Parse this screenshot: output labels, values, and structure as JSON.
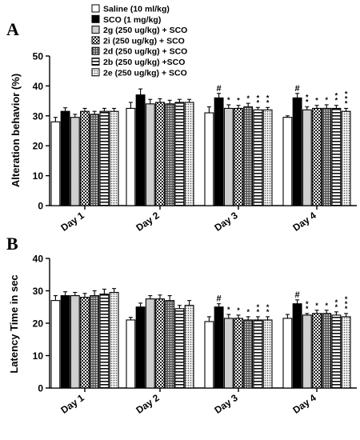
{
  "legend": {
    "entries": [
      {
        "label": "Saline (10 ml/kg)",
        "pattern": "white"
      },
      {
        "label": "SCO (1 mg/kg)",
        "pattern": "black"
      },
      {
        "label": "2g (250 ug/kg) + SCO",
        "pattern": "lightgray"
      },
      {
        "label": "2i (250 ug/kg) + SCO",
        "pattern": "check"
      },
      {
        "label": "2d (250 ug/kg) + SCO",
        "pattern": "checkdark"
      },
      {
        "label": "2b (250 ug/kg) +SCO",
        "pattern": "hstripe"
      },
      {
        "label": "2e (250 ug/kg) + SCO",
        "pattern": "dots"
      }
    ]
  },
  "chart_data": [
    {
      "panel_letter": "A",
      "type": "bar",
      "ylabel": "Alteration behavior (%)",
      "ylim": [
        0,
        50
      ],
      "yticks": [
        0,
        10,
        20,
        30,
        40,
        50
      ],
      "categories": [
        "Day 1",
        "Day 2",
        "Day 3",
        "Day 4"
      ],
      "series": [
        {
          "name": "Saline (10 ml/kg)",
          "values": [
            28,
            32.5,
            31,
            29.5
          ],
          "errors": [
            1.5,
            2,
            2,
            0.5
          ]
        },
        {
          "name": "SCO (1 mg/kg)",
          "values": [
            31.5,
            37,
            36,
            36
          ],
          "errors": [
            1.2,
            2,
            1.5,
            1.5
          ]
        },
        {
          "name": "2g (250 ug/kg) + SCO",
          "values": [
            29.5,
            34,
            32.5,
            32
          ],
          "errors": [
            1,
            1.5,
            1.2,
            1
          ]
        },
        {
          "name": "2i (250 ug/kg) + SCO",
          "values": [
            31.5,
            34.5,
            32.5,
            32.5
          ],
          "errors": [
            1,
            1.2,
            1,
            1
          ]
        },
        {
          "name": "2d (250 ug/kg) + SCO",
          "values": [
            30.5,
            34,
            33,
            32.5
          ],
          "errors": [
            1,
            1.2,
            1.2,
            1.2
          ]
        },
        {
          "name": "2b (250 ug/kg) +SCO",
          "values": [
            31.5,
            34.5,
            32,
            32.5
          ],
          "errors": [
            1,
            1,
            0.8,
            1
          ]
        },
        {
          "name": "2e (250 ug/kg) + SCO",
          "values": [
            31.5,
            34.5,
            32,
            31.5
          ],
          "errors": [
            1,
            1,
            0.8,
            1
          ]
        }
      ],
      "annotations": [
        {
          "category": 2,
          "series": 1,
          "text": "#"
        },
        {
          "category": 2,
          "series": 2,
          "text": "*"
        },
        {
          "category": 2,
          "series": 3,
          "text": "*"
        },
        {
          "category": 2,
          "series": 4,
          "text": "*"
        },
        {
          "category": 2,
          "series": 5,
          "text": "**"
        },
        {
          "category": 2,
          "series": 6,
          "text": "**"
        },
        {
          "category": 3,
          "series": 1,
          "text": "#"
        },
        {
          "category": 3,
          "series": 2,
          "text": "**"
        },
        {
          "category": 3,
          "series": 3,
          "text": "*"
        },
        {
          "category": 3,
          "series": 4,
          "text": "*"
        },
        {
          "category": 3,
          "series": 5,
          "text": "**"
        },
        {
          "category": 3,
          "series": 6,
          "text": "***"
        }
      ]
    },
    {
      "panel_letter": "B",
      "type": "bar",
      "ylabel": "Latency Time in sec",
      "ylim": [
        0,
        40
      ],
      "yticks": [
        0,
        10,
        20,
        30,
        40
      ],
      "categories": [
        "Day 1",
        "Day 2",
        "Day 3",
        "Day 4"
      ],
      "series": [
        {
          "name": "Saline (10 ml/kg)",
          "values": [
            27,
            21,
            20.5,
            21.5
          ],
          "errors": [
            1.5,
            0.8,
            1.5,
            1.2
          ]
        },
        {
          "name": "SCO (1 mg/kg)",
          "values": [
            28.5,
            25,
            25,
            26
          ],
          "errors": [
            1.2,
            1.2,
            1,
            1.2
          ]
        },
        {
          "name": "2g (250 ug/kg) + SCO",
          "values": [
            28.5,
            27.5,
            21.5,
            22.5
          ],
          "errors": [
            1,
            1,
            1.2,
            0.5
          ]
        },
        {
          "name": "2i (250 ug/kg) + SCO",
          "values": [
            28,
            27.5,
            21.5,
            23
          ],
          "errors": [
            1.2,
            1.2,
            1,
            1
          ]
        },
        {
          "name": "2d (250 ug/kg) + SCO",
          "values": [
            28.5,
            27,
            21,
            23
          ],
          "errors": [
            1.5,
            1.5,
            1,
            1
          ]
        },
        {
          "name": "2b (250 ug/kg) +SCO",
          "values": [
            29,
            24.5,
            21,
            22.5
          ],
          "errors": [
            1.5,
            1,
            1,
            1
          ]
        },
        {
          "name": "2e (250 ug/kg) + SCO",
          "values": [
            29.5,
            25.5,
            21,
            22
          ],
          "errors": [
            1.2,
            1.5,
            1,
            1
          ]
        }
      ],
      "annotations": [
        {
          "category": 2,
          "series": 1,
          "text": "#"
        },
        {
          "category": 2,
          "series": 2,
          "text": "*"
        },
        {
          "category": 2,
          "series": 3,
          "text": "*"
        },
        {
          "category": 2,
          "series": 4,
          "text": "*"
        },
        {
          "category": 2,
          "series": 5,
          "text": "**"
        },
        {
          "category": 2,
          "series": 6,
          "text": "**"
        },
        {
          "category": 3,
          "series": 1,
          "text": "#"
        },
        {
          "category": 3,
          "series": 2,
          "text": "**"
        },
        {
          "category": 3,
          "series": 3,
          "text": "*"
        },
        {
          "category": 3,
          "series": 4,
          "text": "*"
        },
        {
          "category": 3,
          "series": 5,
          "text": "**"
        },
        {
          "category": 3,
          "series": 6,
          "text": "***"
        }
      ]
    }
  ]
}
